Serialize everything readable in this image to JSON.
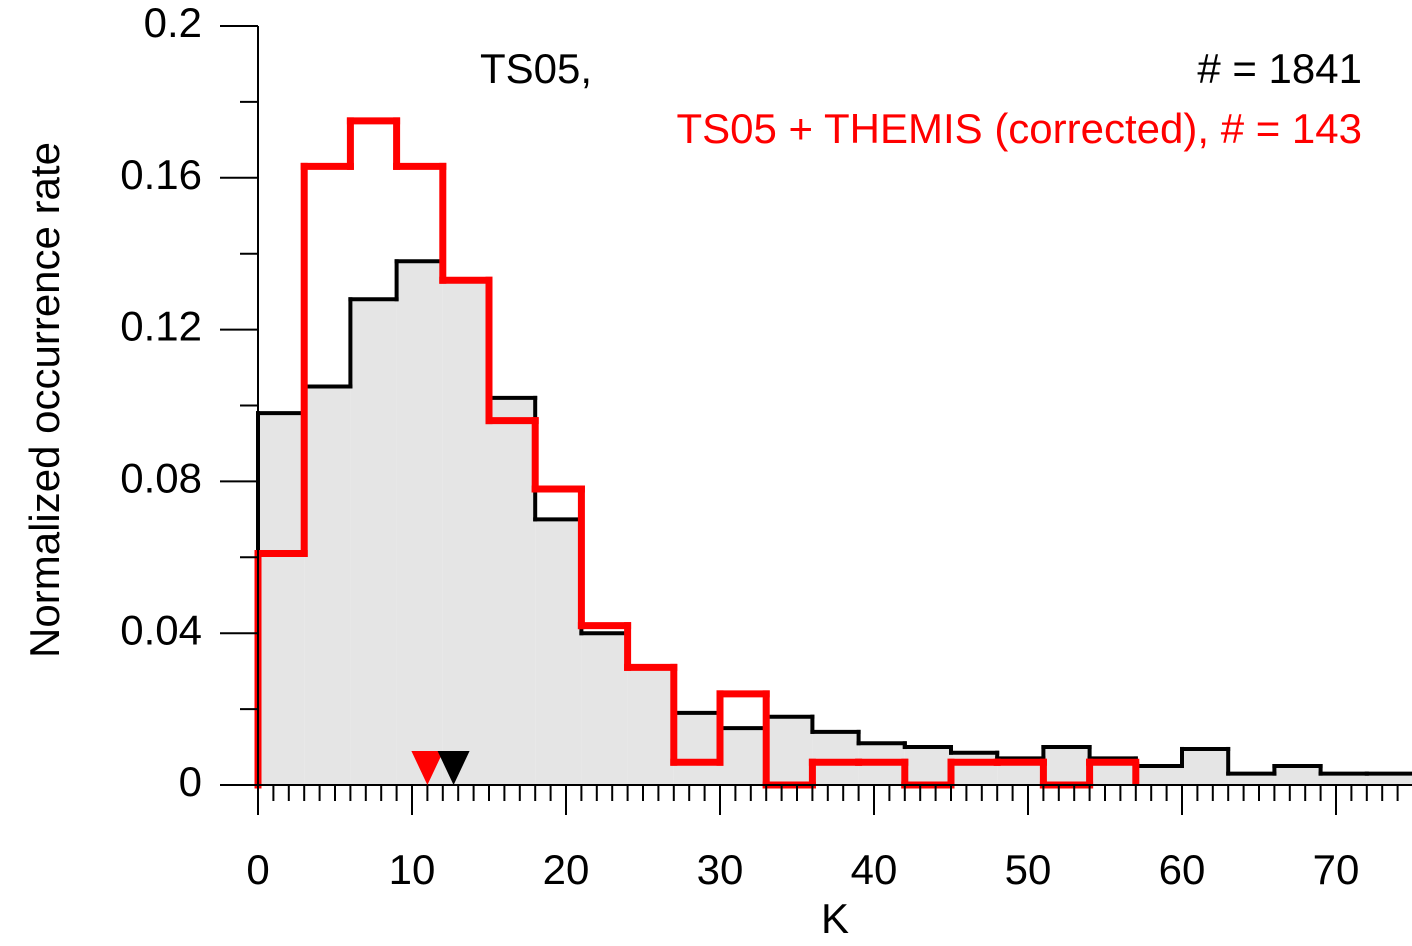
{
  "chart_data": {
    "type": "histogram",
    "x_label": "K",
    "y_label": "Normalized occurrence rate",
    "bins": [
      0,
      3,
      6,
      9,
      12,
      15,
      18,
      21,
      24,
      27,
      30,
      33,
      36,
      39,
      42,
      45,
      48,
      51,
      54,
      57,
      60,
      63,
      66,
      69,
      72,
      75
    ],
    "series": [
      {
        "name": "TS05,",
        "count_label": "# = 1841",
        "color": "#000000",
        "fill": "#e5e5e5",
        "median": 12.7,
        "values": [
          0.098,
          0.105,
          0.128,
          0.138,
          0.133,
          0.102,
          0.07,
          0.04,
          0.031,
          0.019,
          0.015,
          0.018,
          0.014,
          0.011,
          0.01,
          0.0085,
          0.007,
          0.01,
          0.007,
          0.005,
          0.0095,
          0.003,
          0.005,
          0.003,
          0.003
        ]
      },
      {
        "name": "TS05 + THEMIS (corrected),  # = 143",
        "color": "#ff0000",
        "median": 11.0,
        "values": [
          0.061,
          0.163,
          0.175,
          0.163,
          0.133,
          0.096,
          0.078,
          0.042,
          0.031,
          0.006,
          0.024,
          0,
          0.006,
          0.006,
          0,
          0.006,
          0.006,
          0,
          0.006,
          null,
          null,
          null,
          null,
          null,
          null
        ]
      }
    ],
    "xlim": [
      0,
      75
    ],
    "xticks": [
      0,
      10,
      20,
      30,
      40,
      50,
      60,
      70
    ],
    "xminor_step": 1,
    "ylim": [
      0,
      0.2
    ],
    "yticks": [
      0,
      0.04,
      0.08,
      0.12,
      0.16,
      0.2
    ],
    "yminor_ticks": [
      0.02,
      0.06,
      0.1,
      0.14,
      0.18
    ]
  }
}
